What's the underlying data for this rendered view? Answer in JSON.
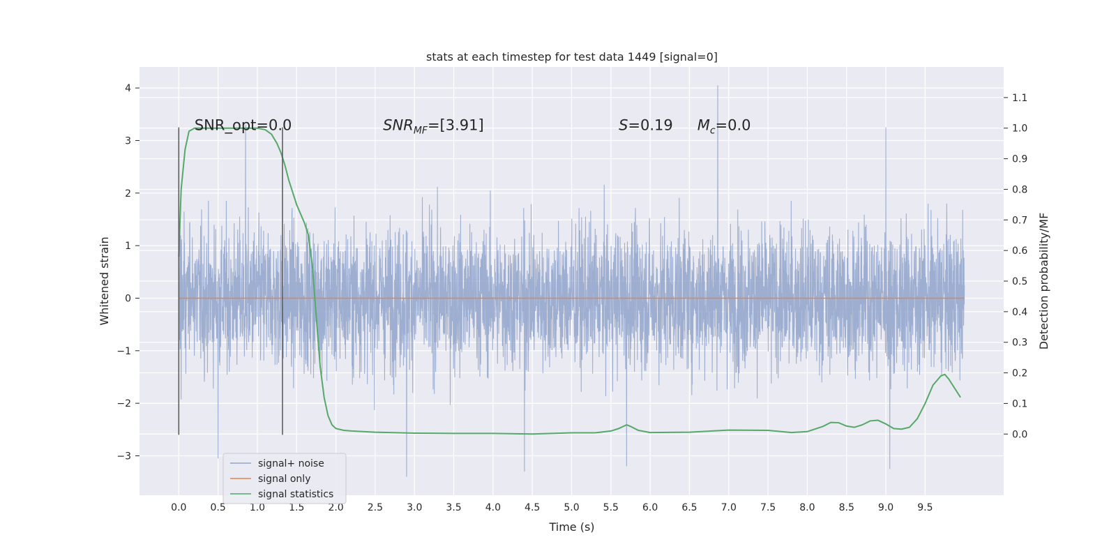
{
  "chart_data": {
    "type": "line",
    "title": "stats at each timestep for test data 1449 [signal=0]",
    "xlabel": "Time (s)",
    "ylabel": "Whitened strain",
    "y2label": "Detection probability/MF",
    "xlim": [
      -0.5,
      10.5
    ],
    "ylim": [
      -3.75,
      4.4
    ],
    "y2lim": [
      -0.2,
      1.2
    ],
    "xticks": [
      0.0,
      0.5,
      1.0,
      1.5,
      2.0,
      2.5,
      3.0,
      3.5,
      4.0,
      4.5,
      5.0,
      5.5,
      6.0,
      6.5,
      7.0,
      7.5,
      8.0,
      8.5,
      9.0,
      9.5
    ],
    "xtick_labels": [
      "0.0",
      "0.5",
      "1.0",
      "1.5",
      "2.0",
      "2.5",
      "3.0",
      "3.5",
      "4.0",
      "4.5",
      "5.0",
      "5.5",
      "6.0",
      "6.5",
      "7.0",
      "7.5",
      "8.0",
      "8.5",
      "9.0",
      "9.5"
    ],
    "yticks": [
      -3,
      -2,
      -1,
      0,
      1,
      2,
      3,
      4
    ],
    "ytick_labels": [
      "−3",
      "−2",
      "−1",
      "0",
      "1",
      "2",
      "3",
      "4"
    ],
    "y2ticks": [
      0.0,
      0.1,
      0.2,
      0.3,
      0.4,
      0.5,
      0.6,
      0.7,
      0.8,
      0.9,
      1.0,
      1.1
    ],
    "y2tick_labels": [
      "0.0",
      "0.1",
      "0.2",
      "0.3",
      "0.4",
      "0.5",
      "0.6",
      "0.7",
      "0.8",
      "0.9",
      "1.0",
      "1.1"
    ],
    "grid": true,
    "legend_position": "lower-left",
    "series": [
      {
        "name": "signal+ noise",
        "color": "#8fa3cb",
        "axis": "left",
        "kind": "noise",
        "x_range": [
          0.0,
          10.0
        ],
        "approx_envelope": [
          -3.4,
          4.05
        ],
        "notable_extremes": [
          {
            "x": 6.86,
            "y": 4.05
          },
          {
            "x": 9.0,
            "y": 3.25
          },
          {
            "x": 0.85,
            "y": 3.3
          },
          {
            "x": 0.5,
            "y": -3.05
          },
          {
            "x": 2.9,
            "y": -3.4
          },
          {
            "x": 4.4,
            "y": -3.3
          },
          {
            "x": 5.7,
            "y": -3.2
          },
          {
            "x": 9.05,
            "y": -3.25
          }
        ]
      },
      {
        "name": "signal only",
        "color": "#dd8452",
        "axis": "left",
        "x": [
          0.0,
          10.0
        ],
        "y": [
          0.0,
          0.0
        ]
      },
      {
        "name": "signal statistics",
        "color": "#55a868",
        "axis": "right",
        "x": [
          0.0,
          0.03,
          0.08,
          0.13,
          0.2,
          0.3,
          0.5,
          0.7,
          0.9,
          1.0,
          1.1,
          1.18,
          1.25,
          1.3,
          1.35,
          1.4,
          1.45,
          1.5,
          1.55,
          1.6,
          1.65,
          1.7,
          1.73,
          1.76,
          1.8,
          1.85,
          1.9,
          1.95,
          2.0,
          2.1,
          2.2,
          2.5,
          3.0,
          3.5,
          4.0,
          4.5,
          5.0,
          5.3,
          5.5,
          5.6,
          5.65,
          5.7,
          5.75,
          5.85,
          6.0,
          6.5,
          7.0,
          7.5,
          7.8,
          8.0,
          8.2,
          8.3,
          8.4,
          8.5,
          8.6,
          8.7,
          8.8,
          8.9,
          9.0,
          9.1,
          9.2,
          9.3,
          9.4,
          9.5,
          9.6,
          9.7,
          9.75,
          9.8,
          9.9,
          9.95
        ],
        "y": [
          0.58,
          0.8,
          0.93,
          0.99,
          1.0,
          1.0,
          1.0,
          1.0,
          1.0,
          1.0,
          0.995,
          0.98,
          0.95,
          0.92,
          0.88,
          0.83,
          0.79,
          0.75,
          0.72,
          0.69,
          0.65,
          0.55,
          0.45,
          0.35,
          0.22,
          0.12,
          0.06,
          0.03,
          0.018,
          0.012,
          0.01,
          0.006,
          0.003,
          0.002,
          0.002,
          0.0,
          0.004,
          0.004,
          0.01,
          0.018,
          0.024,
          0.03,
          0.025,
          0.012,
          0.005,
          0.006,
          0.013,
          0.012,
          0.005,
          0.008,
          0.025,
          0.038,
          0.037,
          0.026,
          0.022,
          0.03,
          0.043,
          0.045,
          0.033,
          0.018,
          0.016,
          0.022,
          0.05,
          0.1,
          0.16,
          0.19,
          0.195,
          0.18,
          0.14,
          0.12
        ]
      }
    ],
    "vertical_markers": [
      {
        "x": 0.0,
        "y_range": [
          -2.6,
          3.25
        ],
        "color": "#555555"
      },
      {
        "x": 1.32,
        "y_range": [
          -2.6,
          3.25
        ],
        "color": "#555555"
      }
    ],
    "annotations": [
      {
        "text": "SNR_opt=0.0",
        "x": 0.2,
        "y": 3.2
      },
      {
        "text": "SNR_MF=[3.91]",
        "x": 2.6,
        "y": 3.2
      },
      {
        "text": "S=0.19",
        "x": 5.6,
        "y": 3.2
      },
      {
        "text": "M_c=0.0",
        "x": 6.6,
        "y": 3.2
      }
    ]
  }
}
